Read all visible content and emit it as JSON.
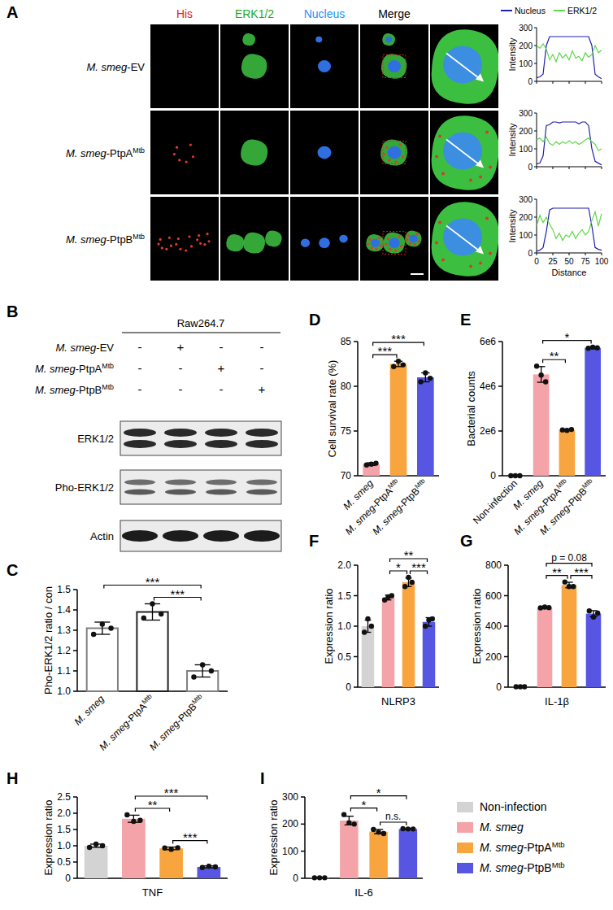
{
  "panel_a": {
    "label": "A",
    "channels": [
      "His",
      "ERK1/2",
      "Nucleus",
      "Merge"
    ],
    "rows": [
      "M. smeg-EV",
      "M. smeg-PtpAMtb",
      "M. smeg-PtpBMtb"
    ]
  },
  "panel_b": {
    "label": "B",
    "cell_line": "Raw264.7",
    "conditions": [
      "M. smeg-EV",
      "M. smeg-PtpAMtb",
      "M. smeg-PtpBMtb"
    ],
    "signs": [
      [
        "-",
        "+",
        "-",
        "-"
      ],
      [
        "-",
        "-",
        "+",
        "-"
      ],
      [
        "-",
        "-",
        "-",
        "+"
      ]
    ],
    "blots": [
      "ERK1/2",
      "Pho-ERK1/2",
      "Actin"
    ]
  },
  "figure_legend": {
    "entries": [
      {
        "name": "Non-infection",
        "color": "#D3D3D3"
      },
      {
        "name": "M. smeg",
        "color": "#F4A3A8"
      },
      {
        "name": "M. smeg-PtpAMtb",
        "color": "#F9A53F"
      },
      {
        "name": "M. smeg-PtpBMtb",
        "color": "#5656E3"
      }
    ]
  },
  "chart_data": [
    {
      "type": "line",
      "legend": "top",
      "tick_labels": "y",
      "y_label": "Intensity",
      "x": [
        0,
        5,
        10,
        15,
        20,
        25,
        30,
        35,
        40,
        45,
        50,
        55,
        60,
        65,
        70,
        75,
        80,
        85,
        90,
        95,
        100
      ],
      "xlim": [
        0,
        100
      ],
      "xticks": [
        0,
        25,
        50,
        75,
        100
      ],
      "ylim": [
        0,
        300
      ],
      "yticks": [
        0,
        100,
        200,
        300
      ],
      "series": [
        {
          "name": "Nucleus",
          "color": "#1f1fb0",
          "values": [
            20,
            25,
            40,
            200,
            250,
            250,
            250,
            250,
            250,
            250,
            250,
            250,
            250,
            250,
            250,
            250,
            250,
            200,
            40,
            25,
            15
          ]
        },
        {
          "name": "ERK1/2",
          "color": "#5fd84a",
          "values": [
            200,
            185,
            210,
            180,
            120,
            150,
            110,
            160,
            130,
            150,
            120,
            170,
            130,
            140,
            115,
            160,
            135,
            150,
            200,
            160,
            175
          ]
        }
      ]
    },
    {
      "type": "line",
      "tick_labels": "y",
      "y_label": "Intensity",
      "x": [
        0,
        5,
        10,
        15,
        20,
        25,
        30,
        35,
        40,
        45,
        50,
        55,
        60,
        65,
        70,
        75,
        80,
        85,
        90,
        95,
        100
      ],
      "xlim": [
        0,
        100
      ],
      "xticks": [
        0,
        25,
        50,
        75,
        100
      ],
      "ylim": [
        0,
        300
      ],
      "yticks": [
        0,
        100,
        200,
        300
      ],
      "series": [
        {
          "name": "Nucleus",
          "color": "#1f1fb0",
          "values": [
            15,
            20,
            60,
            230,
            235,
            250,
            250,
            245,
            250,
            250,
            250,
            250,
            250,
            240,
            250,
            250,
            230,
            100,
            30,
            20,
            10
          ]
        },
        {
          "name": "ERK1/2",
          "color": "#5fd84a",
          "values": [
            150,
            160,
            140,
            165,
            130,
            120,
            140,
            125,
            140,
            130,
            145,
            130,
            140,
            125,
            135,
            150,
            160,
            140,
            125,
            90,
            100
          ]
        }
      ]
    },
    {
      "type": "line",
      "y_label": "Intensity",
      "x_label": "Distance",
      "x": [
        0,
        5,
        10,
        15,
        20,
        25,
        30,
        35,
        40,
        45,
        50,
        55,
        60,
        65,
        70,
        75,
        80,
        85,
        90,
        95,
        100
      ],
      "xlim": [
        0,
        100
      ],
      "xticks": [
        0,
        25,
        50,
        75,
        100
      ],
      "ylim": [
        0,
        300
      ],
      "yticks": [
        0,
        100,
        200,
        300
      ],
      "series": [
        {
          "name": "Nucleus",
          "color": "#1f1fb0",
          "values": [
            10,
            15,
            30,
            120,
            240,
            250,
            250,
            250,
            250,
            250,
            250,
            250,
            250,
            250,
            250,
            250,
            250,
            150,
            30,
            20,
            15
          ]
        },
        {
          "name": "ERK1/2",
          "color": "#5fd84a",
          "values": [
            150,
            210,
            170,
            200,
            160,
            130,
            80,
            110,
            70,
            100,
            90,
            120,
            80,
            110,
            130,
            100,
            120,
            180,
            230,
            150,
            220
          ]
        }
      ]
    },
    {
      "type": "bar",
      "panel_label": "C",
      "y_label": "Pho-ERK1/2 ratio / con",
      "marker": "hollow",
      "categories": [
        "M. smeg",
        "M. smeg-PtpAMtb",
        "M. smeg-PtpBMtb"
      ],
      "values": [
        1.31,
        1.39,
        1.1
      ],
      "errors": [
        0.03,
        0.04,
        0.03
      ],
      "replicates": [
        [
          1.28,
          1.33,
          1.31
        ],
        [
          1.36,
          1.43,
          1.38
        ],
        [
          1.07,
          1.13,
          1.1
        ]
      ],
      "colors": [
        "#808080",
        "#222222",
        "#808080"
      ],
      "ylim": [
        1.0,
        1.5
      ],
      "yticks": [
        {
          "value": 1.0,
          "label": "1.0"
        },
        1.1,
        1.2,
        1.3,
        1.4,
        1.5
      ],
      "annotations": [
        {
          "text": "***",
          "between": [
            "M. smeg-PtpAMtb",
            "M. smeg-PtpBMtb"
          ]
        },
        {
          "text": "***",
          "between": [
            "M. smeg",
            "M. smeg-PtpBMtb"
          ]
        }
      ]
    },
    {
      "type": "bar",
      "panel_label": "D",
      "y_label": "Cell survival rate (%)",
      "categories": [
        "M. smeg",
        "M. smeg-PtpAMtb",
        "M. smeg-PtpBMtb"
      ],
      "values": [
        71.3,
        82.5,
        81.0
      ],
      "errors": [
        0.15,
        0.3,
        0.5
      ],
      "replicates": [
        [
          71.2,
          71.3,
          71.4
        ],
        [
          82.2,
          82.8,
          82.4
        ],
        [
          80.5,
          81.5,
          80.9
        ]
      ],
      "colors": [
        "#F4A3A8",
        "#F9A53F",
        "#5656E3"
      ],
      "ylim": [
        70,
        85
      ],
      "yticks": [
        70,
        75,
        80,
        85
      ],
      "annotations": [
        {
          "text": "***",
          "between": [
            "M. smeg",
            "M. smeg-PtpAMtb"
          ]
        },
        {
          "text": "***",
          "between": [
            "M. smeg",
            "M. smeg-PtpBMtb"
          ]
        }
      ]
    },
    {
      "type": "bar",
      "panel_label": "E",
      "y_label": "Bacterial counts",
      "categories": [
        "Non-infection",
        "M. smeg",
        "M. smeg-PtpAMtb",
        "M. smeg-PtpBMtb"
      ],
      "values": [
        0,
        4530000,
        2050000,
        5720000
      ],
      "errors": [
        0,
        350000,
        30000,
        40000
      ],
      "replicates": [
        [
          0,
          0,
          0
        ],
        [
          4900000,
          4500000,
          4200000
        ],
        [
          2050000,
          2030000,
          2070000
        ],
        [
          5700000,
          5750000,
          5720000
        ]
      ],
      "colors": [
        "#D3D3D3",
        "#F4A3A8",
        "#F9A53F",
        "#5656E3"
      ],
      "ylim": [
        0,
        6000000
      ],
      "yticks": [
        0,
        {
          "value": 2000000,
          "label": "2e6"
        },
        {
          "value": 4000000,
          "label": "4e6"
        },
        {
          "value": 6000000,
          "label": "6e6"
        }
      ],
      "annotations": [
        {
          "text": "**",
          "between": [
            "M. smeg",
            "M. smeg-PtpAMtb"
          ]
        },
        {
          "text": "*",
          "between": [
            "M. smeg",
            "M. smeg-PtpBMtb"
          ]
        }
      ]
    },
    {
      "type": "bar",
      "panel_label": "F",
      "y_label": "Expression ratio",
      "x_label": "NLRP3",
      "tick_labels": "y",
      "categories": [
        "Non-infection",
        "M. smeg",
        "M. smeg-PtpAMtb",
        "M. smeg-PtpBMtb"
      ],
      "values": [
        1.0,
        1.47,
        1.72,
        1.07
      ],
      "errors": [
        0.1,
        0.04,
        0.07,
        0.07
      ],
      "replicates": [
        [
          0.9,
          1.12,
          1.0
        ],
        [
          1.43,
          1.48,
          1.5
        ],
        [
          1.65,
          1.8,
          1.72
        ],
        [
          1.0,
          1.1,
          1.12
        ]
      ],
      "colors": [
        "#D3D3D3",
        "#F4A3A8",
        "#F9A53F",
        "#5656E3"
      ],
      "ylim": [
        0,
        2.0
      ],
      "yticks": [
        0,
        0.5,
        {
          "value": 1.0,
          "label": "1.0"
        },
        1.5,
        {
          "value": 2.0,
          "label": "2.0"
        }
      ],
      "annotations": [
        {
          "text": "*",
          "between": [
            "M. smeg",
            "M. smeg-PtpAMtb"
          ]
        },
        {
          "text": "***",
          "between": [
            "M. smeg-PtpAMtb",
            "M. smeg-PtpBMtb"
          ]
        },
        {
          "text": "**",
          "between": [
            "M. smeg",
            "M. smeg-PtpBMtb"
          ]
        }
      ]
    },
    {
      "type": "bar",
      "panel_label": "G",
      "y_label": "Expression ratio",
      "x_label": "IL-1β",
      "tick_labels": "y",
      "categories": [
        "Non-infection",
        "M. smeg",
        "M. smeg-PtpAMtb",
        "M. smeg-PtpBMtb"
      ],
      "values": [
        3,
        522,
        670,
        482
      ],
      "errors": [
        1,
        5,
        18,
        20
      ],
      "replicates": [
        [
          3,
          3,
          3
        ],
        [
          520,
          525,
          522
        ],
        [
          690,
          660,
          660
        ],
        [
          500,
          460,
          485
        ]
      ],
      "colors": [
        "#D3D3D3",
        "#F4A3A8",
        "#F9A53F",
        "#5656E3"
      ],
      "ylim": [
        0,
        800
      ],
      "yticks": [
        0,
        200,
        400,
        600,
        800
      ],
      "annotations": [
        {
          "text": "**",
          "between": [
            "M. smeg",
            "M. smeg-PtpAMtb"
          ]
        },
        {
          "text": "***",
          "between": [
            "M. smeg-PtpAMtb",
            "M. smeg-PtpBMtb"
          ]
        },
        {
          "text": "p = 0.08",
          "between": [
            "M. smeg",
            "M. smeg-PtpBMtb"
          ]
        }
      ]
    },
    {
      "type": "bar",
      "panel_label": "H",
      "y_label": "Expression ratio",
      "x_label": "TNF",
      "tick_labels": "y",
      "categories": [
        "Non-infection",
        "M. smeg",
        "M. smeg-PtpAMtb",
        "M. smeg-PtpBMtb"
      ],
      "values": [
        1.0,
        1.83,
        0.92,
        0.35
      ],
      "errors": [
        0.05,
        0.11,
        0.04,
        0.03
      ],
      "replicates": [
        [
          0.95,
          1.05,
          1.0
        ],
        [
          1.95,
          1.75,
          1.78
        ],
        [
          0.93,
          0.89,
          0.94
        ],
        [
          0.33,
          0.37,
          0.35
        ]
      ],
      "colors": [
        "#D3D3D3",
        "#F4A3A8",
        "#F9A53F",
        "#5656E3"
      ],
      "ylim": [
        0,
        2.5
      ],
      "yticks": [
        0,
        0.5,
        {
          "value": 1.0,
          "label": "1.0"
        },
        1.5,
        {
          "value": 2.0,
          "label": "2.0"
        },
        2.5
      ],
      "annotations": [
        {
          "text": "**",
          "between": [
            "M. smeg",
            "M. smeg-PtpAMtb"
          ]
        },
        {
          "text": "***",
          "between": [
            "M. smeg-PtpAMtb",
            "M. smeg-PtpBMtb"
          ]
        },
        {
          "text": "***",
          "between": [
            "M. smeg",
            "M. smeg-PtpBMtb"
          ]
        }
      ]
    },
    {
      "type": "bar",
      "panel_label": "I",
      "y_label": "Expression ratio",
      "x_label": "IL-6",
      "tick_labels": "y",
      "categories": [
        "Non-infection",
        "M. smeg",
        "M. smeg-PtpAMtb",
        "M. smeg-PtpBMtb"
      ],
      "values": [
        2,
        213,
        172,
        182
      ],
      "errors": [
        1,
        16,
        8,
        1
      ],
      "replicates": [
        [
          2,
          2,
          2
        ],
        [
          235,
          205,
          200
        ],
        [
          180,
          170,
          165
        ],
        [
          183,
          182,
          182
        ]
      ],
      "colors": [
        "#D3D3D3",
        "#F4A3A8",
        "#F9A53F",
        "#5656E3"
      ],
      "ylim": [
        0,
        300
      ],
      "yticks": [
        0,
        100,
        200,
        300
      ],
      "annotations": [
        {
          "text": "*",
          "between": [
            "M. smeg",
            "M. smeg-PtpAMtb"
          ]
        },
        {
          "text": "n.s.",
          "between": [
            "M. smeg-PtpAMtb",
            "M. smeg-PtpBMtb"
          ]
        },
        {
          "text": "*",
          "between": [
            "M. smeg",
            "M. smeg-PtpBMtb"
          ]
        }
      ]
    }
  ]
}
